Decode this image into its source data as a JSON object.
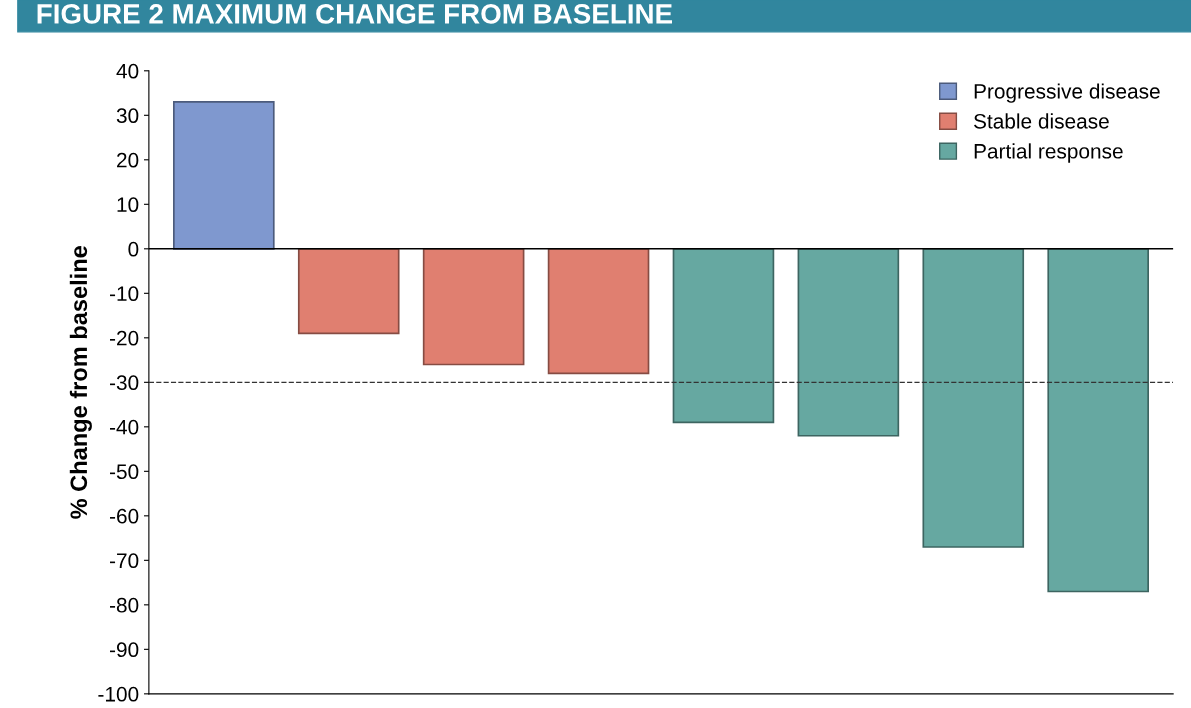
{
  "chart_data": {
    "type": "bar",
    "title": "FIGURE 2 MAXIMUM CHANGE FROM BASELINE",
    "ylabel": "% Change from baseline",
    "categories": [
      null,
      null,
      null,
      null,
      null,
      null,
      null,
      null
    ],
    "series": [
      {
        "name": "Progressive disease",
        "color": "#7f98cf",
        "values": [
          33,
          null,
          null,
          null,
          null,
          null,
          null,
          null
        ]
      },
      {
        "name": "Stable disease",
        "color": "#e07f70",
        "values": [
          null,
          -19,
          -26,
          -28,
          null,
          null,
          null,
          null
        ]
      },
      {
        "name": "Partial response",
        "color": "#66a8a1",
        "values": [
          null,
          null,
          null,
          null,
          -39,
          -42,
          -67,
          -77
        ]
      }
    ],
    "ylim": [
      -100,
      40
    ],
    "yticks": [
      -100,
      -90,
      -80,
      -70,
      -60,
      -50,
      -40,
      -30,
      -20,
      -10,
      0,
      10,
      20,
      30,
      40
    ],
    "ref_lines": [
      {
        "axis": "y",
        "value": -30,
        "line_style": "dashed",
        "color": "#333333"
      }
    ],
    "grid": false,
    "legend": "top right"
  }
}
